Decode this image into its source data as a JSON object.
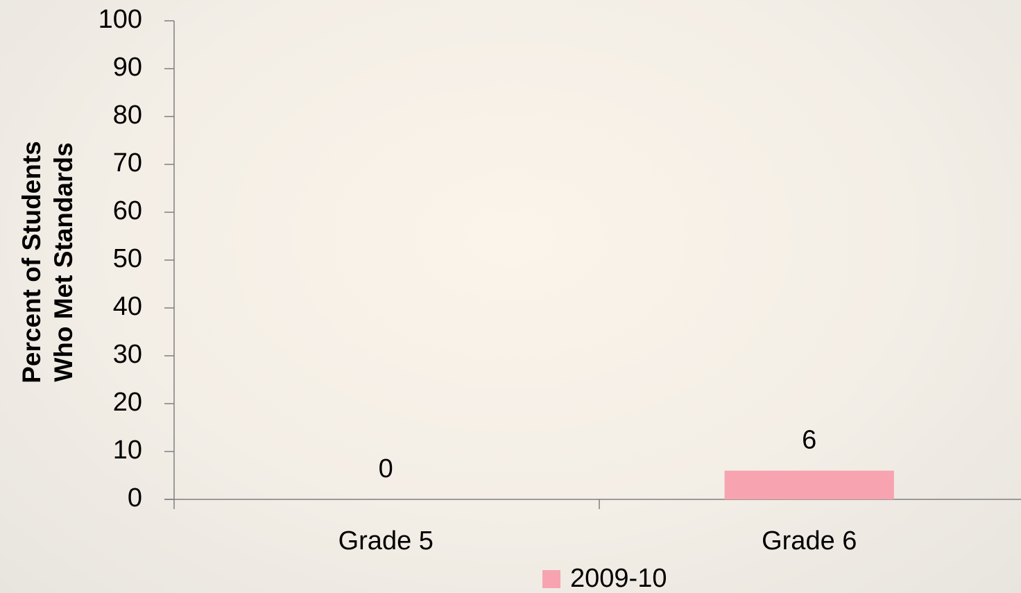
{
  "chart_data": {
    "type": "bar",
    "ylabel": [
      "Percent of Students",
      "Who Met Standards"
    ],
    "categories": [
      "Grade 5",
      "Grade 6"
    ],
    "series": [
      {
        "name": "2009-10",
        "color": "#f7a3b0",
        "values": [
          0,
          6
        ]
      }
    ],
    "ylim": [
      0,
      100
    ],
    "yticks": [
      0,
      10,
      20,
      30,
      40,
      50,
      60,
      70,
      80,
      90,
      100
    ],
    "grid": false,
    "legend": "bottom"
  }
}
